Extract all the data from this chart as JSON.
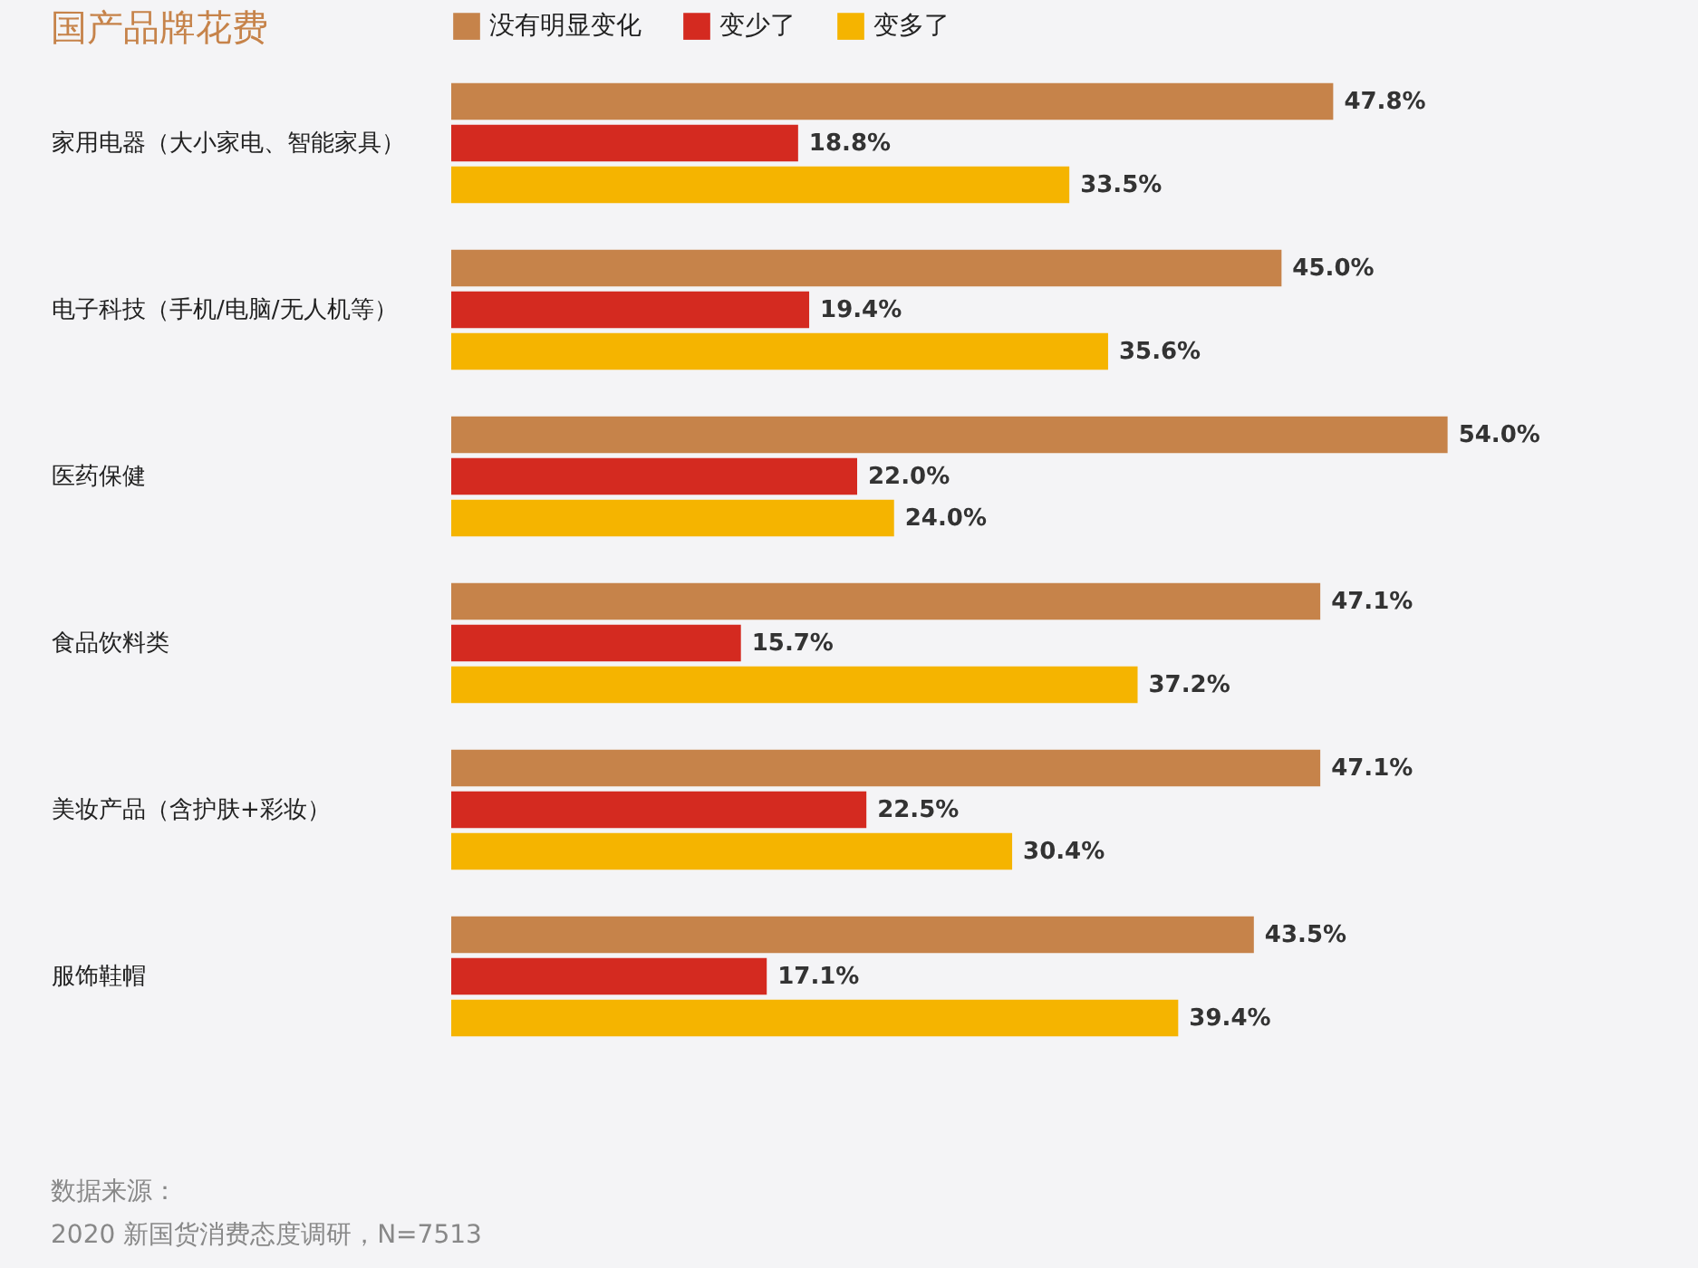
{
  "chart_data": {
    "type": "bar",
    "orientation": "horizontal",
    "title": "国产品牌花费",
    "categories": [
      "家用电器（大小家电、智能家具）",
      "电子科技（手机/电脑/无人机等）",
      "医药保健",
      "食品饮料类",
      "美妆产品（含护肤+彩妆）",
      "服饰鞋帽"
    ],
    "series": [
      {
        "name": "没有明显变化",
        "color": "#c6834a",
        "values": [
          47.8,
          45.0,
          54.0,
          47.1,
          47.1,
          43.5
        ],
        "value_labels": [
          "47.8%",
          "45.0%",
          "54.0%",
          "47.1%",
          "47.1%",
          "43.5%"
        ]
      },
      {
        "name": "变少了",
        "color": "#d42a20",
        "values": [
          18.8,
          19.4,
          22.0,
          15.7,
          22.5,
          17.1
        ],
        "value_labels": [
          "18.8%",
          "19.4%",
          "22.0%",
          "15.7%",
          "22.5%",
          "17.1%"
        ]
      },
      {
        "name": "变多了",
        "color": "#f5b400",
        "values": [
          33.5,
          35.6,
          24.0,
          37.2,
          30.4,
          39.4
        ],
        "value_labels": [
          "33.5%",
          "35.6%",
          "24.0%",
          "37.2%",
          "30.4%",
          "39.4%"
        ]
      }
    ],
    "legend": "top",
    "annotations": [
      "数据来源：",
      "2020 新国货消费态度调研，N=7513"
    ]
  }
}
